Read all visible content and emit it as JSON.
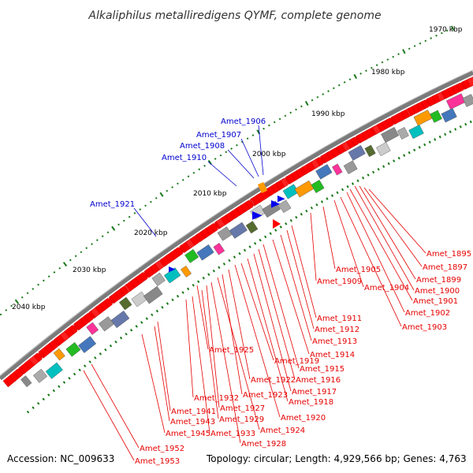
{
  "title": "Alkaliphilus metalliredigens QYMF, complete genome",
  "footer": {
    "accession": "Accession: NC_009633",
    "topology": "Topology: circular; Length: 4,929,566 bp; Genes: 4,763"
  },
  "ticks": [
    "1970 kbp",
    "1980 kbp",
    "1990 kbp",
    "2000 kbp",
    "2010 kbp",
    "2020 kbp",
    "2030 kbp",
    "2040 kbp"
  ],
  "labels_blue": [
    "Amet_1906",
    "Amet_1907",
    "Amet_1908",
    "Amet_1910",
    "Amet_1921"
  ],
  "labels_red": [
    "Amet_1895",
    "Amet_1897",
    "Amet_1899",
    "Amet_1900",
    "Amet_1901",
    "Amet_1902",
    "Amet_1903",
    "Amet_1904",
    "Amet_1905",
    "Amet_1909",
    "Amet_1911",
    "Amet_1912",
    "Amet_1913",
    "Amet_1914",
    "Amet_1915",
    "Amet_1916",
    "Amet_1917",
    "Amet_1918",
    "Amet_1919",
    "Amet_1920",
    "Amet_1922",
    "Amet_1923",
    "Amet_1924",
    "Amet_1925",
    "Amet_1927",
    "Amet_1928",
    "Amet_1929",
    "Amet_1932",
    "Amet_1933",
    "Amet_1941",
    "Amet_1943",
    "Amet_1945",
    "Amet_1952",
    "Amet_1953"
  ],
  "colors": {
    "gene_forward": "#ff0000",
    "gene_blue": "#0000ee",
    "backbone": "#777777",
    "tick_dot": "#1a7a1a",
    "label_red": "#e60000",
    "label_blue": "#0000cc"
  }
}
